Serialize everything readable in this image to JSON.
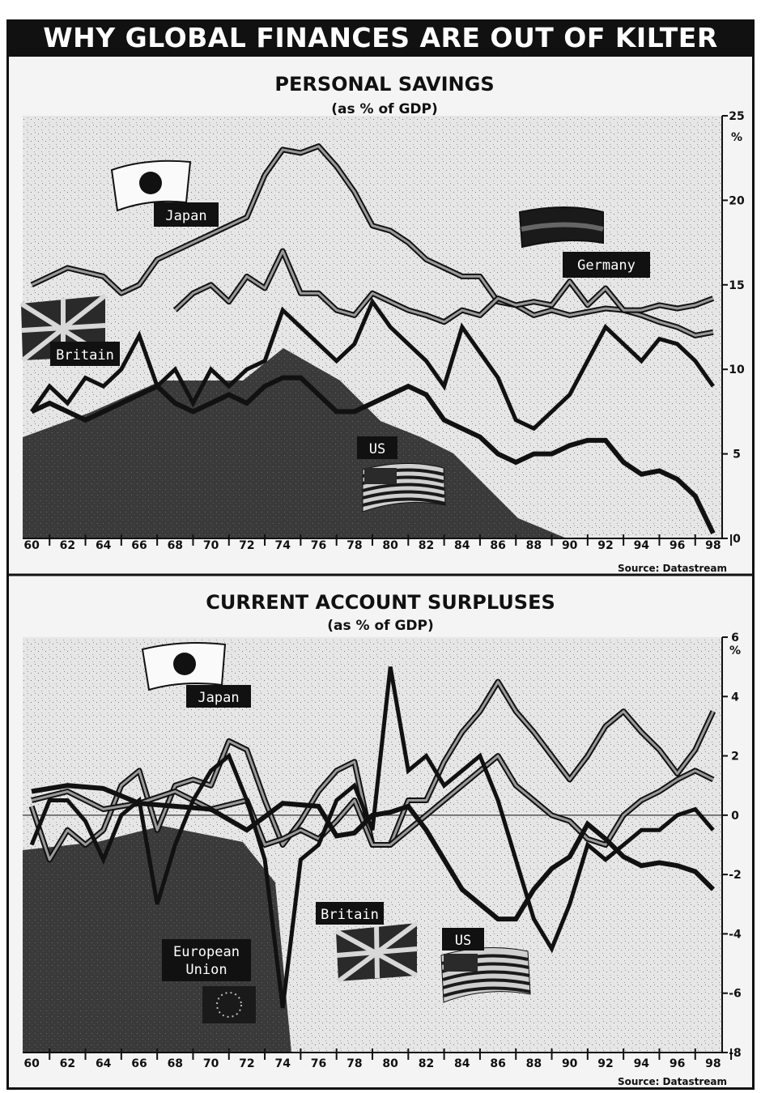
{
  "banner_title": "WHY GLOBAL FINANCES ARE OUT OF KILTER",
  "colors": {
    "ink": "#111111",
    "paper": "#f4f4f4",
    "dark_fill": "#2a2a2a",
    "grey": "#9a9a9a"
  },
  "chart_data": [
    {
      "type": "line",
      "title": "PERSONAL SAVINGS",
      "subtitle": "(as % of GDP)",
      "unit": "%",
      "source": "Source: Datastream",
      "ylim": [
        0,
        25
      ],
      "yticks": [
        "0",
        "5",
        "10",
        "15",
        "20",
        "25"
      ],
      "xlim": [
        1959.5,
        1998.5
      ],
      "xticks": [
        "60",
        "62",
        "64",
        "66",
        "68",
        "70",
        "72",
        "74",
        "76",
        "78",
        "80",
        "82",
        "84",
        "86",
        "88",
        "90",
        "92",
        "94",
        "96",
        "98"
      ],
      "series": [
        {
          "name": "Japan",
          "style": "double",
          "x": [
            1960,
            1962,
            1964,
            1965,
            1966,
            1967,
            1968,
            1970,
            1972,
            1973,
            1974,
            1975,
            1976,
            1977,
            1978,
            1979,
            1980,
            1981,
            1982,
            1983,
            1984,
            1985,
            1986,
            1987,
            1988,
            1989,
            1990,
            1991,
            1992,
            1993,
            1994,
            1995,
            1996,
            1997,
            1998
          ],
          "y": [
            15,
            16,
            15.5,
            14.5,
            15,
            16.5,
            17,
            18,
            19,
            21.5,
            23,
            22.8,
            23.2,
            22,
            20.5,
            18.5,
            18.2,
            17.5,
            16.5,
            16,
            15.5,
            15.5,
            14,
            13.8,
            13.2,
            13.5,
            13.2,
            13.4,
            13.6,
            13.5,
            13.2,
            12.8,
            12.5,
            12,
            12.2
          ]
        },
        {
          "name": "Germany",
          "style": "double",
          "x": [
            1968,
            1969,
            1970,
            1971,
            1972,
            1973,
            1974,
            1975,
            1976,
            1977,
            1978,
            1979,
            1980,
            1981,
            1982,
            1983,
            1984,
            1985,
            1986,
            1987,
            1988,
            1989,
            1990,
            1991,
            1992,
            1993,
            1994,
            1995,
            1996,
            1997,
            1998
          ],
          "y": [
            13.5,
            14.5,
            15,
            14,
            15.5,
            14.8,
            17,
            14.5,
            14.5,
            13.5,
            13.2,
            14.5,
            14,
            13.5,
            13.2,
            12.8,
            13.5,
            13.2,
            14.2,
            13.8,
            14,
            13.8,
            15.2,
            13.8,
            14.8,
            13.5,
            13.5,
            13.8,
            13.6,
            13.8,
            14.2
          ]
        },
        {
          "name": "Britain",
          "style": "thick-jagged",
          "x": [
            1960,
            1961,
            1962,
            1963,
            1964,
            1965,
            1966,
            1967,
            1968,
            1969,
            1970,
            1971,
            1972,
            1973,
            1974,
            1975,
            1976,
            1977,
            1978,
            1979,
            1980,
            1981,
            1982,
            1983,
            1984,
            1985,
            1986,
            1987,
            1988,
            1989,
            1990,
            1991,
            1992,
            1993,
            1994,
            1995,
            1996,
            1997,
            1998
          ],
          "y": [
            7.5,
            9,
            8,
            9.5,
            9,
            10,
            12,
            9,
            10,
            8,
            10,
            9,
            10,
            10.5,
            13.5,
            12.5,
            11.5,
            10.5,
            11.5,
            14,
            12.5,
            11.5,
            10.5,
            9,
            12.5,
            11,
            9.5,
            7,
            6.5,
            7.5,
            8.5,
            10.5,
            12.5,
            11.5,
            10.5,
            11.8,
            11.5,
            10.5,
            9
          ]
        },
        {
          "name": "US",
          "style": "thick",
          "x": [
            1960,
            1961,
            1962,
            1963,
            1964,
            1965,
            1966,
            1967,
            1968,
            1969,
            1970,
            1971,
            1972,
            1973,
            1974,
            1975,
            1976,
            1977,
            1978,
            1979,
            1980,
            1981,
            1982,
            1983,
            1984,
            1985,
            1986,
            1987,
            1988,
            1989,
            1990,
            1991,
            1992,
            1993,
            1994,
            1995,
            1996,
            1997,
            1998
          ],
          "y": [
            7.5,
            8,
            7.5,
            7,
            7.5,
            8,
            8.5,
            9,
            8,
            7.5,
            8,
            8.5,
            8,
            9,
            9.5,
            9.5,
            8.5,
            7.5,
            7.5,
            8,
            8.5,
            9,
            8.5,
            7,
            6.5,
            6,
            5,
            4.5,
            5,
            5,
            5.5,
            5.8,
            5.8,
            4.5,
            3.8,
            4,
            3.5,
            2.5,
            0.3
          ]
        }
      ],
      "labels": [
        "Japan",
        "Germany",
        "Britain",
        "US"
      ]
    },
    {
      "type": "line",
      "title": "CURRENT ACCOUNT SURPLUSES",
      "subtitle": "(as % of GDP)",
      "unit": "%",
      "source": "Source: Datastream",
      "ylim": [
        -8,
        6
      ],
      "yticks": [
        "-8",
        "-6",
        "-4",
        "-2",
        "0",
        "2",
        "4",
        "6"
      ],
      "xlim": [
        1959.5,
        1998.5
      ],
      "xticks": [
        "60",
        "62",
        "64",
        "66",
        "68",
        "70",
        "72",
        "74",
        "76",
        "78",
        "80",
        "82",
        "84",
        "86",
        "88",
        "90",
        "92",
        "94",
        "96",
        "98"
      ],
      "series": [
        {
          "name": "Japan",
          "style": "double",
          "x": [
            1960,
            1961,
            1962,
            1963,
            1964,
            1965,
            1966,
            1967,
            1968,
            1969,
            1970,
            1971,
            1972,
            1973,
            1974,
            1975,
            1976,
            1977,
            1978,
            1979,
            1980,
            1981,
            1982,
            1983,
            1984,
            1985,
            1986,
            1987,
            1988,
            1989,
            1990,
            1991,
            1992,
            1993,
            1994,
            1995,
            1996,
            1997,
            1998
          ],
          "y": [
            0.3,
            -1.5,
            -0.5,
            -1,
            -0.5,
            1,
            1.5,
            -0.5,
            1,
            1.2,
            1,
            2.5,
            2.2,
            0.5,
            -1,
            -0.2,
            0.8,
            1.5,
            1.8,
            -1,
            -1,
            0.5,
            0.5,
            1.8,
            2.8,
            3.5,
            4.5,
            3.5,
            2.8,
            2,
            1.2,
            2,
            3,
            3.5,
            2.8,
            2.2,
            1.4,
            2.2,
            3.5
          ]
        },
        {
          "name": "European Union",
          "style": "double",
          "x": [
            1960,
            1962,
            1964,
            1966,
            1968,
            1970,
            1972,
            1973,
            1974,
            1975,
            1976,
            1977,
            1978,
            1979,
            1980,
            1981,
            1982,
            1983,
            1984,
            1985,
            1986,
            1987,
            1988,
            1989,
            1990,
            1991,
            1992,
            1993,
            1994,
            1995,
            1996,
            1997,
            1998
          ],
          "y": [
            0.5,
            0.8,
            0.2,
            0.4,
            0.8,
            0.2,
            0.5,
            -1,
            -0.8,
            -0.5,
            -0.8,
            -0.2,
            0.5,
            -1,
            -1,
            -0.5,
            0,
            0.5,
            1,
            1.5,
            2,
            1,
            0.5,
            0,
            -0.2,
            -0.8,
            -1,
            0,
            0.5,
            0.8,
            1.2,
            1.5,
            1.2
          ]
        },
        {
          "name": "Britain",
          "style": "thick-jagged",
          "x": [
            1960,
            1961,
            1962,
            1963,
            1964,
            1965,
            1966,
            1967,
            1968,
            1969,
            1970,
            1971,
            1972,
            1973,
            1974,
            1975,
            1976,
            1977,
            1978,
            1979,
            1980,
            1981,
            1982,
            1983,
            1984,
            1985,
            1986,
            1987,
            1988,
            1989,
            1990,
            1991,
            1992,
            1993,
            1994,
            1995,
            1996,
            1997,
            1998
          ],
          "y": [
            -1,
            0.5,
            0.5,
            -0.2,
            -1.5,
            0,
            0.5,
            -3,
            -1,
            0.5,
            1.5,
            2,
            0.5,
            -1.5,
            -6.5,
            -1.5,
            -1,
            0.5,
            1,
            -0.5,
            5,
            1.5,
            2,
            1,
            1.5,
            2,
            0.5,
            -1.5,
            -3.5,
            -4.5,
            -3,
            -1,
            -1.5,
            -1,
            -0.5,
            -0.5,
            0,
            0.2,
            -0.5
          ]
        },
        {
          "name": "US",
          "style": "thick",
          "x": [
            1960,
            1962,
            1964,
            1966,
            1968,
            1970,
            1972,
            1974,
            1976,
            1977,
            1978,
            1979,
            1980,
            1981,
            1982,
            1983,
            1984,
            1985,
            1986,
            1987,
            1988,
            1989,
            1990,
            1991,
            1992,
            1993,
            1994,
            1995,
            1996,
            1997,
            1998
          ],
          "y": [
            0.8,
            1,
            0.9,
            0.4,
            0.3,
            0.2,
            -0.5,
            0.4,
            0.3,
            -0.7,
            -0.6,
            0,
            0.1,
            0.3,
            -0.5,
            -1.5,
            -2.5,
            -3,
            -3.5,
            -3.5,
            -2.5,
            -1.8,
            -1.4,
            -0.3,
            -0.8,
            -1.4,
            -1.7,
            -1.6,
            -1.7,
            -1.9,
            -2.5
          ]
        }
      ],
      "labels": [
        "Japan",
        "European Union",
        "Britain",
        "US"
      ]
    }
  ]
}
